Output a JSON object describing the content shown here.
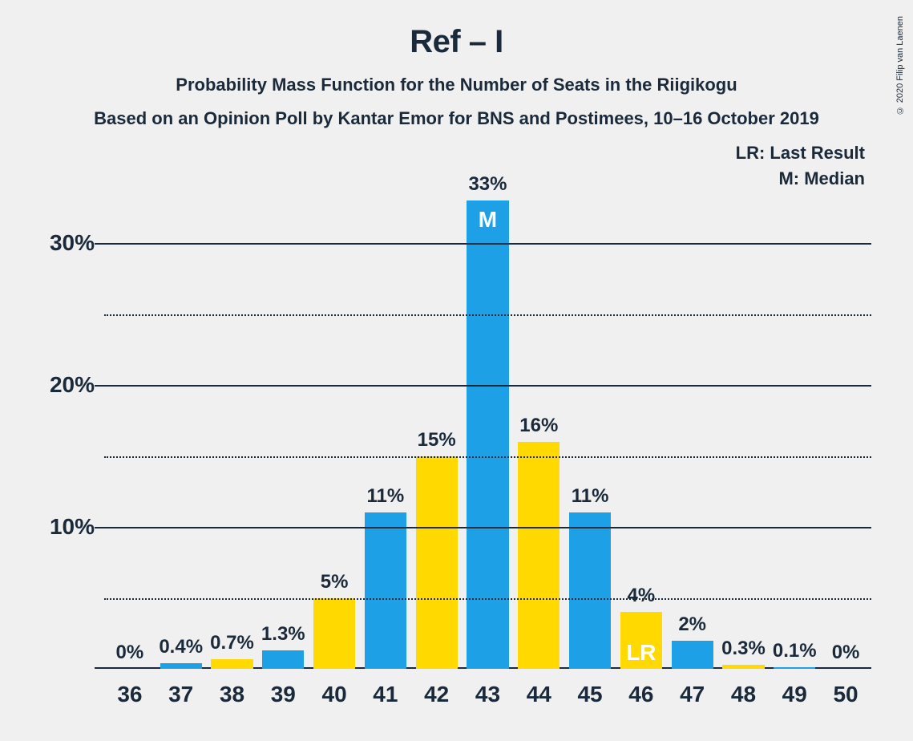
{
  "title": "Ref – I",
  "subtitle": "Probability Mass Function for the Number of Seats in the Riigikogu",
  "subtitle2": "Based on an Opinion Poll by Kantar Emor for BNS and Postimees, 10–16 October 2019",
  "legend": {
    "lr": "LR: Last Result",
    "m": "M: Median"
  },
  "copyright": "© 2020 Filip van Laenen",
  "chart": {
    "type": "bar",
    "ylim": [
      0,
      33
    ],
    "y_axis": {
      "major_ticks": [
        10,
        20,
        30
      ],
      "minor_ticks": [
        5,
        15,
        25
      ],
      "major_labels": [
        "10%",
        "20%",
        "30%"
      ]
    },
    "colors": {
      "blue": "#1ea0e6",
      "yellow": "#ffd900",
      "text": "#1a2a3a",
      "background": "#f0f0f0",
      "marker_text": "#ffffff"
    },
    "bar_width_ratio": 0.82,
    "value_fontsize": 24,
    "axis_fontsize": 28,
    "marker_fontsize": 28,
    "bars": [
      {
        "x": "36",
        "value": 0,
        "label": "0%",
        "color": "blue",
        "marker": null
      },
      {
        "x": "37",
        "value": 0.4,
        "label": "0.4%",
        "color": "blue",
        "marker": null
      },
      {
        "x": "38",
        "value": 0.7,
        "label": "0.7%",
        "color": "yellow",
        "marker": null
      },
      {
        "x": "39",
        "value": 1.3,
        "label": "1.3%",
        "color": "blue",
        "marker": null
      },
      {
        "x": "40",
        "value": 5,
        "label": "5%",
        "color": "yellow",
        "marker": null
      },
      {
        "x": "41",
        "value": 11,
        "label": "11%",
        "color": "blue",
        "marker": null
      },
      {
        "x": "42",
        "value": 15,
        "label": "15%",
        "color": "yellow",
        "marker": null
      },
      {
        "x": "43",
        "value": 33,
        "label": "33%",
        "color": "blue",
        "marker": "M"
      },
      {
        "x": "44",
        "value": 16,
        "label": "16%",
        "color": "yellow",
        "marker": null
      },
      {
        "x": "45",
        "value": 11,
        "label": "11%",
        "color": "blue",
        "marker": null
      },
      {
        "x": "46",
        "value": 4,
        "label": "4%",
        "color": "yellow",
        "marker": "LR"
      },
      {
        "x": "47",
        "value": 2,
        "label": "2%",
        "color": "blue",
        "marker": null
      },
      {
        "x": "48",
        "value": 0.3,
        "label": "0.3%",
        "color": "yellow",
        "marker": null
      },
      {
        "x": "49",
        "value": 0.1,
        "label": "0.1%",
        "color": "blue",
        "marker": null
      },
      {
        "x": "50",
        "value": 0,
        "label": "0%",
        "color": "yellow",
        "marker": null
      }
    ]
  }
}
